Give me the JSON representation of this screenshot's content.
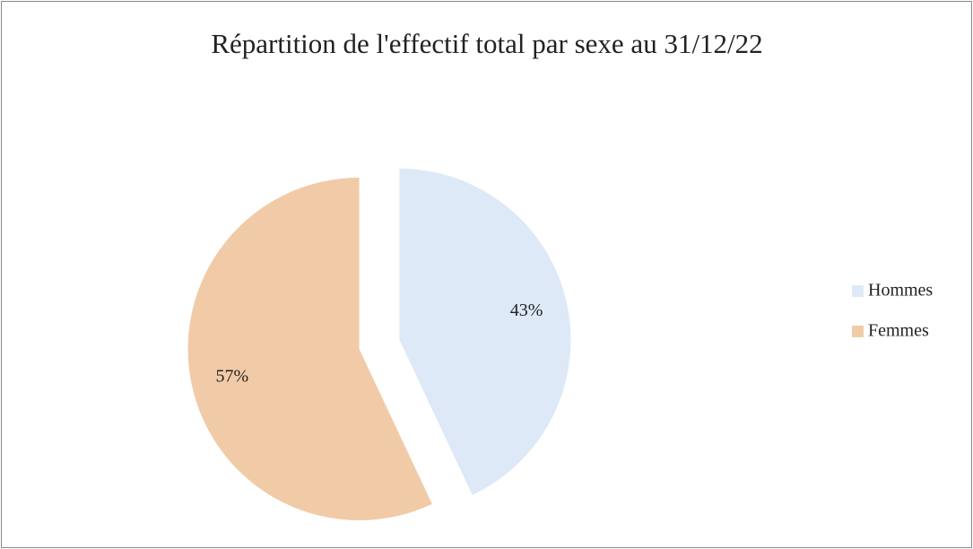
{
  "chart_data": {
    "type": "pie",
    "title": "Répartition de l'effectif total par sexe au 31/12/22",
    "categories": [
      "Hommes",
      "Femmes"
    ],
    "values": [
      43,
      57
    ],
    "value_labels": [
      "43%",
      "57%"
    ],
    "colors": [
      "#dde9f7",
      "#f1cba7"
    ],
    "legend": "right"
  }
}
